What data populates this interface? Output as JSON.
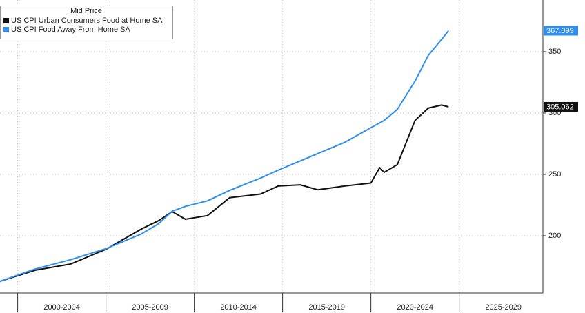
{
  "chart_data": {
    "type": "line",
    "legend_title": "Mid Price",
    "x": [
      1999,
      2001,
      2003,
      2005,
      2007,
      2008,
      2008.75,
      2009.5,
      2010.75,
      2012,
      2013.75,
      2014.75,
      2016,
      2017,
      2018.5,
      2020,
      2020.5,
      2020.75,
      2021.5,
      2022.5,
      2023.25,
      2024,
      2024.4
    ],
    "series": [
      {
        "name": "US CPI Urban Consumers Food at Home SA",
        "color": "#111111",
        "values": [
          162.9,
          172,
          177,
          189,
          205.5,
          212.5,
          219.7,
          213.5,
          216.5,
          231,
          234,
          240.5,
          241.5,
          237.5,
          240.5,
          243,
          255.6,
          251.7,
          258,
          294,
          304,
          306.5,
          305.062
        ]
      },
      {
        "name": "US CPI Food Away From Home SA",
        "color": "#2e8fef",
        "values": [
          162.9,
          173,
          180.5,
          189.5,
          201.5,
          210,
          220,
          224,
          228.5,
          237,
          247,
          253.5,
          261,
          267,
          276,
          288,
          292,
          294,
          303,
          326,
          347,
          360,
          367.099
        ]
      }
    ],
    "xlim": [
      1999,
      2029.74
    ],
    "xticks": [
      {
        "value": 2000,
        "label": "2000-2004"
      },
      {
        "value": 2005,
        "label": "2005-2009"
      },
      {
        "value": 2010,
        "label": "2010-2014"
      },
      {
        "value": 2015,
        "label": "2015-2019"
      },
      {
        "value": 2020,
        "label": "2020-2024"
      },
      {
        "value": 2025,
        "label": "2025-2029"
      }
    ],
    "ylim": [
      153.4,
      392.1
    ],
    "yticks": [
      200,
      250,
      300,
      350
    ],
    "grid": true,
    "legend": "top-left"
  }
}
